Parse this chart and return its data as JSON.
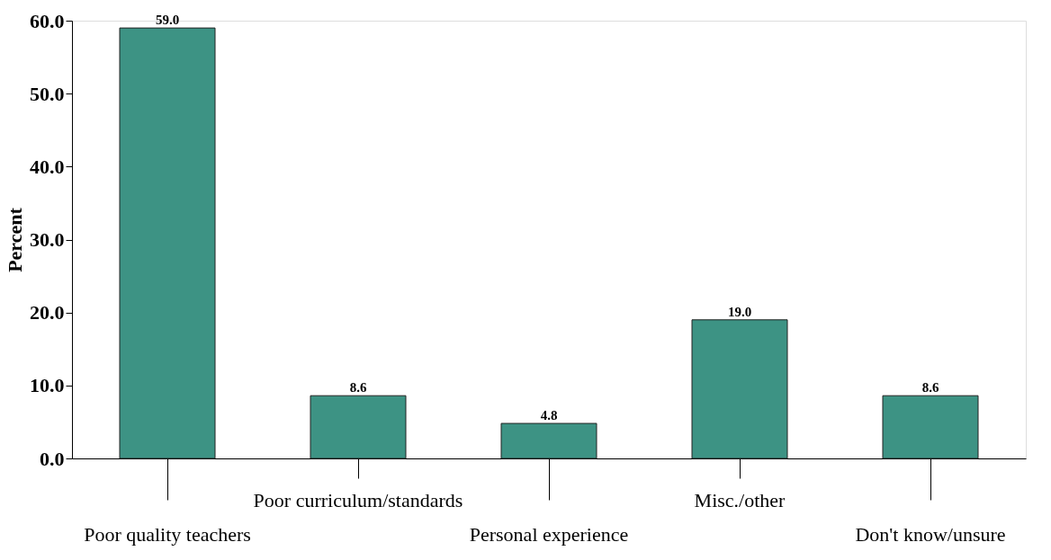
{
  "chart_data": {
    "type": "bar",
    "ylabel": "Percent",
    "categories": [
      "Poor quality teachers",
      "Poor curriculum/standards",
      "Personal experience",
      "Misc./other",
      "Don't know/unsure"
    ],
    "values": [
      59.0,
      8.6,
      4.8,
      19.0,
      8.6
    ],
    "value_labels": [
      "59.0",
      "8.6",
      "4.8",
      "19.0",
      "8.6"
    ],
    "color": "#3d9384",
    "ylim": [
      0,
      60
    ],
    "yticks": [
      {
        "value": 0,
        "label": "0.0"
      },
      {
        "value": 10,
        "label": "10.0"
      },
      {
        "value": 20,
        "label": "20.0"
      },
      {
        "value": 30,
        "label": "30.0"
      },
      {
        "value": 40,
        "label": "40.0"
      },
      {
        "value": 50,
        "label": "50.0"
      },
      {
        "value": 60,
        "label": "60.0"
      }
    ],
    "grid": false
  }
}
